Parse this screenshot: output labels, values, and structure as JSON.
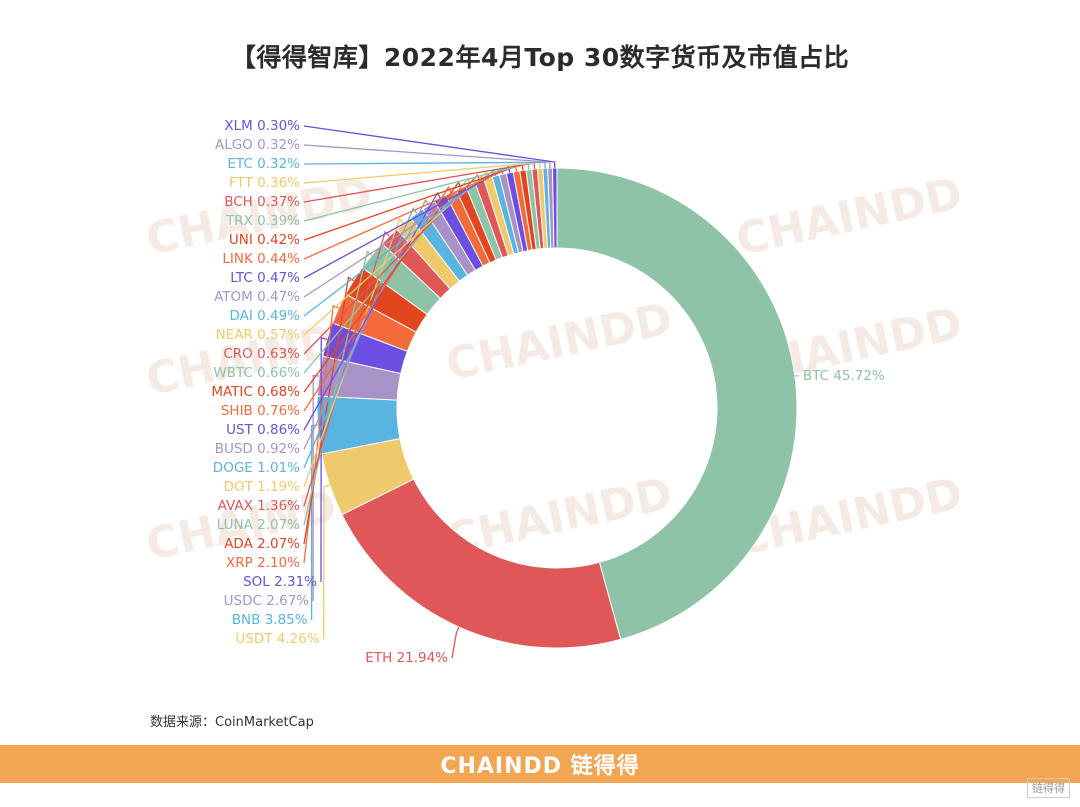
{
  "title": "【得得智库】2022年4月Top 30数字货币及市值占比",
  "source": "数据来源：CoinMarketCap",
  "footer": {
    "logo": "CHAINDD 链得得"
  },
  "corner_mark": "链得得",
  "watermark": "CHAINDD",
  "chart_data": {
    "type": "pie",
    "style": "donut",
    "unit": "%",
    "slices": [
      {
        "label": "BTC",
        "value": 45.72,
        "color": "#8ec3a7"
      },
      {
        "label": "ETH",
        "value": 21.94,
        "color": "#df5757"
      },
      {
        "label": "USDT",
        "value": 4.26,
        "color": "#efca6c"
      },
      {
        "label": "BNB",
        "value": 3.85,
        "color": "#5ab4e0"
      },
      {
        "label": "USDC",
        "value": 2.67,
        "color": "#a893c9"
      },
      {
        "label": "SOL",
        "value": 2.31,
        "color": "#6a4fe2"
      },
      {
        "label": "XRP",
        "value": 2.1,
        "color": "#f46b3b"
      },
      {
        "label": "ADA",
        "value": 2.07,
        "color": "#e2461f"
      },
      {
        "label": "LUNA",
        "value": 2.07,
        "color": "#8ec3a7"
      },
      {
        "label": "AVAX",
        "value": 1.36,
        "color": "#df5757"
      },
      {
        "label": "DOT",
        "value": 1.19,
        "color": "#efca6c"
      },
      {
        "label": "DOGE",
        "value": 1.01,
        "color": "#5ab4e0"
      },
      {
        "label": "BUSD",
        "value": 0.92,
        "color": "#a893c9"
      },
      {
        "label": "UST",
        "value": 0.86,
        "color": "#6a4fe2"
      },
      {
        "label": "SHIB",
        "value": 0.76,
        "color": "#f46b3b"
      },
      {
        "label": "MATIC",
        "value": 0.68,
        "color": "#e2461f"
      },
      {
        "label": "WBTC",
        "value": 0.66,
        "color": "#8ec3a7"
      },
      {
        "label": "CRO",
        "value": 0.63,
        "color": "#df5757"
      },
      {
        "label": "NEAR",
        "value": 0.57,
        "color": "#efca6c"
      },
      {
        "label": "DAI",
        "value": 0.49,
        "color": "#5ab4e0"
      },
      {
        "label": "ATOM",
        "value": 0.47,
        "color": "#a893c9"
      },
      {
        "label": "LTC",
        "value": 0.47,
        "color": "#6a4fe2"
      },
      {
        "label": "LINK",
        "value": 0.44,
        "color": "#f46b3b"
      },
      {
        "label": "UNI",
        "value": 0.42,
        "color": "#e2461f"
      },
      {
        "label": "TRX",
        "value": 0.39,
        "color": "#8ec3a7"
      },
      {
        "label": "BCH",
        "value": 0.37,
        "color": "#df5757"
      },
      {
        "label": "FTT",
        "value": 0.36,
        "color": "#efca6c"
      },
      {
        "label": "ETC",
        "value": 0.32,
        "color": "#5ab4e0"
      },
      {
        "label": "ALGO",
        "value": 0.32,
        "color": "#a893c9"
      },
      {
        "label": "XLM",
        "value": 0.3,
        "color": "#6a4fe2"
      }
    ]
  }
}
